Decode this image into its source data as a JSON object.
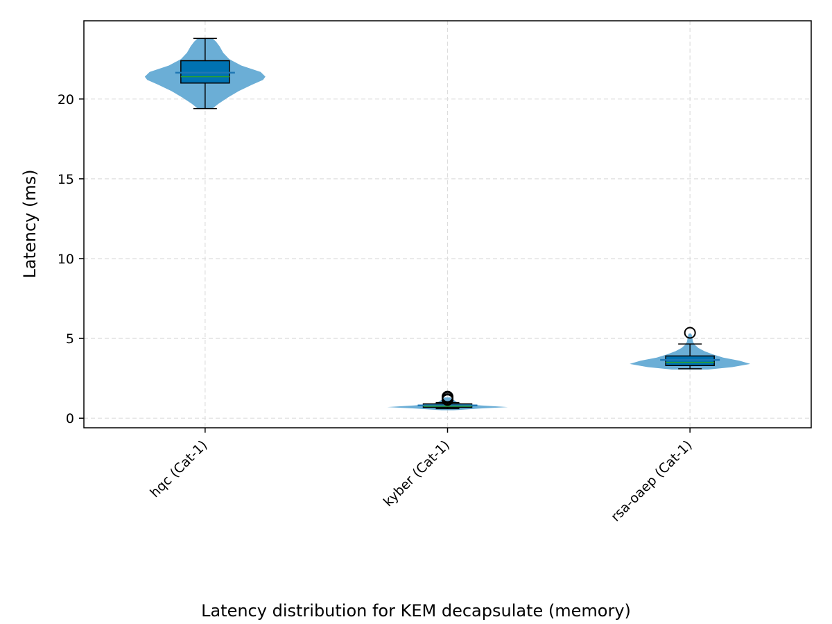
{
  "chart_data": {
    "type": "violin",
    "caption": "Latency distribution for KEM decapsulate (memory)",
    "xlabel": "",
    "ylabel": "Latency (ms)",
    "ylim": [
      -0.6,
      24.9
    ],
    "yticks": [
      0,
      5,
      10,
      15,
      20
    ],
    "grid": true,
    "categories": [
      "hqc (Cat-1)",
      "kyber (Cat-1)",
      "rsa-oaep (Cat-1)"
    ],
    "colors": {
      "violin": "#6baed6",
      "box": "#0072b2",
      "median": "#2ca02c",
      "mean": "#1f77b4",
      "frame": "#000000",
      "grid": "#dddddd"
    },
    "distributions": [
      {
        "category": "hqc (Cat-1)",
        "whisker_low": 19.4,
        "q1": 21.0,
        "median": 21.4,
        "q3": 22.4,
        "whisker_high": 23.8,
        "mean": 21.65,
        "outliers": [],
        "density": [
          [
            19.4,
            0.12
          ],
          [
            19.7,
            0.22
          ],
          [
            20.1,
            0.38
          ],
          [
            20.5,
            0.56
          ],
          [
            20.9,
            0.78
          ],
          [
            21.2,
            0.96
          ],
          [
            21.4,
            1.0
          ],
          [
            21.7,
            0.92
          ],
          [
            22.1,
            0.6
          ],
          [
            22.5,
            0.4
          ],
          [
            22.9,
            0.3
          ],
          [
            23.3,
            0.24
          ],
          [
            23.6,
            0.18
          ],
          [
            23.8,
            0.12
          ]
        ]
      },
      {
        "category": "kyber (Cat-1)",
        "whisker_low": 0.6,
        "q1": 0.68,
        "median": 0.75,
        "q3": 0.9,
        "whisker_high": 0.98,
        "mean": 0.8,
        "outliers": [
          1.15,
          1.2,
          1.3,
          1.35
        ],
        "density": [
          [
            0.5,
            0.1
          ],
          [
            0.6,
            0.5
          ],
          [
            0.7,
            1.0
          ],
          [
            0.8,
            0.55
          ],
          [
            0.9,
            0.25
          ],
          [
            1.0,
            0.16
          ],
          [
            1.1,
            0.12
          ],
          [
            1.2,
            0.08
          ],
          [
            1.3,
            0.05
          ]
        ]
      },
      {
        "category": "rsa-oaep (Cat-1)",
        "whisker_low": 3.1,
        "q1": 3.3,
        "median": 3.5,
        "q3": 3.9,
        "whisker_high": 4.65,
        "mean": 3.65,
        "outliers": [
          5.35
        ],
        "density": [
          [
            3.05,
            0.3
          ],
          [
            3.2,
            0.7
          ],
          [
            3.4,
            1.0
          ],
          [
            3.6,
            0.82
          ],
          [
            3.8,
            0.55
          ],
          [
            4.0,
            0.38
          ],
          [
            4.2,
            0.24
          ],
          [
            4.4,
            0.14
          ],
          [
            4.6,
            0.08
          ],
          [
            4.8,
            0.05
          ],
          [
            5.0,
            0.04
          ],
          [
            5.2,
            0.03
          ],
          [
            5.3,
            0.02
          ]
        ]
      }
    ]
  }
}
